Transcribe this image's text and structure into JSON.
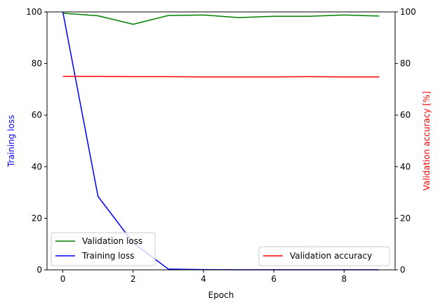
{
  "chart_data": {
    "type": "line",
    "title": "",
    "xlabel": "Epoch",
    "ylabel_left": "Training loss",
    "ylabel_right": "Validation accuracy [%]",
    "xlim": [
      -0.45,
      9.45
    ],
    "ylim_left": [
      0,
      100
    ],
    "ylim_right": [
      0,
      100
    ],
    "x_ticks": [
      0,
      2,
      4,
      6,
      8
    ],
    "y_ticks_left": [
      0,
      20,
      40,
      60,
      80,
      100
    ],
    "y_ticks_right": [
      0,
      20,
      40,
      60,
      80,
      100
    ],
    "grid": false,
    "x": [
      0,
      1,
      2,
      3,
      4,
      5,
      6,
      7,
      8,
      9
    ],
    "series": [
      {
        "name": "Validation loss",
        "axis": "left",
        "color": "#008000",
        "values": [
          99.5,
          98.5,
          95.2,
          98.6,
          98.8,
          97.8,
          98.3,
          98.3,
          98.8,
          98.4
        ]
      },
      {
        "name": "Training loss",
        "axis": "left",
        "color": "#0000ff",
        "values": [
          100.0,
          28.5,
          10.5,
          0.3,
          0.1,
          0.05,
          0.05,
          0.05,
          0.05,
          0.05
        ]
      },
      {
        "name": "Validation accuracy",
        "axis": "right",
        "color": "#ff0000",
        "values": [
          75.0,
          75.0,
          74.9,
          74.9,
          74.8,
          74.8,
          74.8,
          74.9,
          74.8,
          74.8
        ]
      }
    ],
    "legends": [
      {
        "position": "lower-left",
        "entries": [
          "Validation loss",
          "Training loss"
        ]
      },
      {
        "position": "lower-right",
        "entries": [
          "Validation accuracy"
        ]
      }
    ],
    "left_axis_label_color": "#0000ff",
    "right_axis_label_color": "#ff0000"
  }
}
